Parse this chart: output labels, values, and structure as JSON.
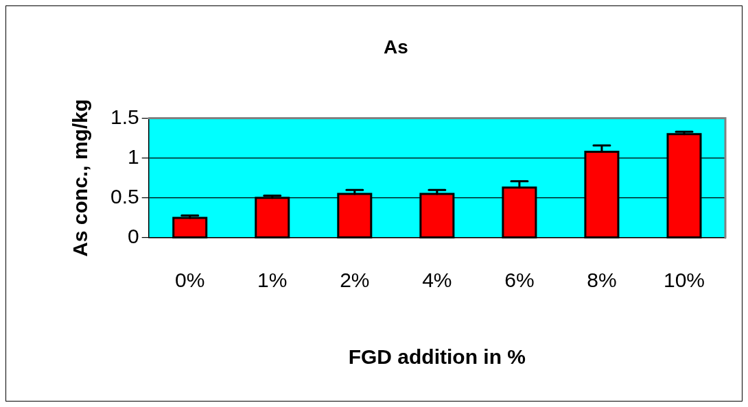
{
  "chart_data": {
    "type": "bar",
    "title": "As",
    "xlabel": "FGD addition in %",
    "ylabel": "As conc., mg/kg",
    "categories": [
      "0%",
      "1%",
      "2%",
      "4%",
      "6%",
      "8%",
      "10%"
    ],
    "values": [
      0.25,
      0.5,
      0.55,
      0.55,
      0.63,
      1.08,
      1.3
    ],
    "errors": [
      [
        0.25,
        0.28
      ],
      [
        0.5,
        0.53
      ],
      [
        0.55,
        0.6
      ],
      [
        0.55,
        0.6
      ],
      [
        0.63,
        0.71
      ],
      [
        1.08,
        1.16
      ],
      [
        1.3,
        1.33
      ]
    ],
    "color": "#ff0000",
    "ylim": [
      0,
      1.5
    ],
    "yticks": [
      0,
      0.5,
      1,
      1.5
    ],
    "grid": "y",
    "legend": false
  }
}
